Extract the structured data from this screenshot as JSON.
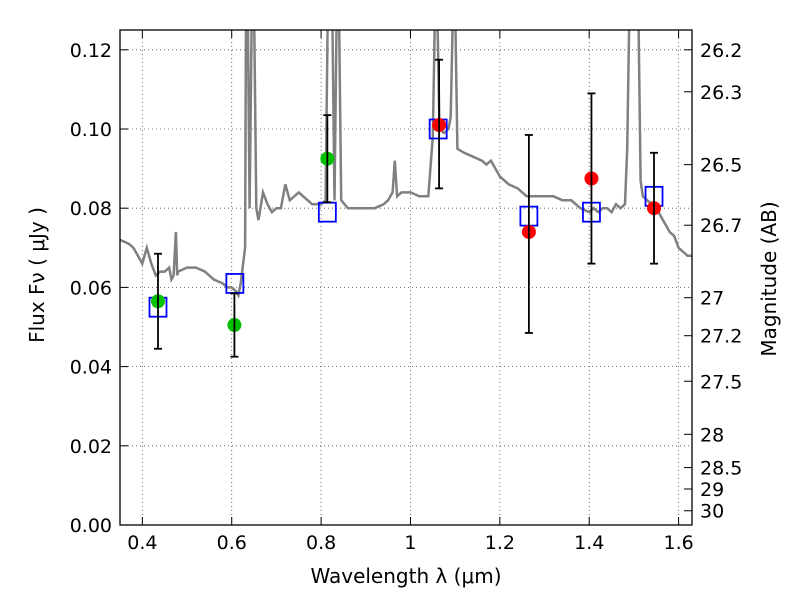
{
  "chart_data": {
    "type": "scatter",
    "xlabel": "Wavelength  λ (μm)",
    "ylabel": "Flux  Fν  ( μJy )",
    "y2label": "Magnitude (AB)",
    "xlim": [
      0.35,
      1.63
    ],
    "ylim": [
      0.0,
      0.125
    ],
    "grid": true,
    "x_ticks": [
      0.4,
      0.6,
      0.8,
      1.0,
      1.2,
      1.4,
      1.6
    ],
    "x_tick_labels": [
      "0.4",
      "0.6",
      "0.8",
      "1",
      "1.2",
      "1.4",
      "1.6"
    ],
    "y_ticks": [
      0.0,
      0.02,
      0.04,
      0.06,
      0.08,
      0.1,
      0.12
    ],
    "y_tick_labels": [
      "0.00",
      "0.02",
      "0.04",
      "0.06",
      "0.08",
      "0.10",
      "0.12"
    ],
    "y2_ticks": [
      {
        "label": "26.2",
        "flux": 0.12
      },
      {
        "label": "26.3",
        "flux": 0.1094
      },
      {
        "label": "26.5",
        "flux": 0.091
      },
      {
        "label": "26.7",
        "flux": 0.0757
      },
      {
        "label": "27",
        "flux": 0.0574
      },
      {
        "label": "27.2",
        "flux": 0.0478
      },
      {
        "label": "27.5",
        "flux": 0.0363
      },
      {
        "label": "28",
        "flux": 0.0229
      },
      {
        "label": "28.5",
        "flux": 0.0145
      },
      {
        "label": "29",
        "flux": 0.0091
      },
      {
        "label": "30",
        "flux": 0.0036
      }
    ],
    "series": [
      {
        "kind": "line",
        "color": "#808080",
        "points": [
          [
            0.35,
            0.072
          ],
          [
            0.37,
            0.071
          ],
          [
            0.38,
            0.07
          ],
          [
            0.39,
            0.068
          ],
          [
            0.4,
            0.066
          ],
          [
            0.41,
            0.07
          ],
          [
            0.42,
            0.066
          ],
          [
            0.43,
            0.063
          ],
          [
            0.44,
            0.064
          ],
          [
            0.45,
            0.064
          ],
          [
            0.46,
            0.065
          ],
          [
            0.465,
            0.062
          ],
          [
            0.47,
            0.063
          ],
          [
            0.475,
            0.074
          ],
          [
            0.478,
            0.063
          ],
          [
            0.48,
            0.064
          ],
          [
            0.5,
            0.065
          ],
          [
            0.52,
            0.065
          ],
          [
            0.54,
            0.064
          ],
          [
            0.56,
            0.062
          ],
          [
            0.58,
            0.061
          ],
          [
            0.59,
            0.06
          ],
          [
            0.6,
            0.06
          ],
          [
            0.61,
            0.059
          ],
          [
            0.615,
            0.058
          ],
          [
            0.62,
            0.061
          ],
          [
            0.63,
            0.07
          ],
          [
            0.632,
            0.13
          ],
          [
            0.636,
            0.13
          ],
          [
            0.64,
            0.08
          ],
          [
            0.645,
            0.13
          ],
          [
            0.65,
            0.13
          ],
          [
            0.655,
            0.08
          ],
          [
            0.66,
            0.077
          ],
          [
            0.67,
            0.084
          ],
          [
            0.68,
            0.081
          ],
          [
            0.69,
            0.079
          ],
          [
            0.7,
            0.08
          ],
          [
            0.71,
            0.08
          ],
          [
            0.72,
            0.086
          ],
          [
            0.73,
            0.082
          ],
          [
            0.74,
            0.083
          ],
          [
            0.75,
            0.084
          ],
          [
            0.76,
            0.083
          ],
          [
            0.77,
            0.082
          ],
          [
            0.78,
            0.081
          ],
          [
            0.79,
            0.081
          ],
          [
            0.8,
            0.081
          ],
          [
            0.81,
            0.082
          ],
          [
            0.815,
            0.13
          ],
          [
            0.825,
            0.13
          ],
          [
            0.83,
            0.082
          ],
          [
            0.835,
            0.13
          ],
          [
            0.84,
            0.13
          ],
          [
            0.845,
            0.082
          ],
          [
            0.86,
            0.08
          ],
          [
            0.88,
            0.08
          ],
          [
            0.9,
            0.08
          ],
          [
            0.92,
            0.08
          ],
          [
            0.94,
            0.081
          ],
          [
            0.95,
            0.082
          ],
          [
            0.96,
            0.084
          ],
          [
            0.965,
            0.092
          ],
          [
            0.97,
            0.083
          ],
          [
            0.98,
            0.084
          ],
          [
            1.0,
            0.084
          ],
          [
            1.02,
            0.083
          ],
          [
            1.04,
            0.083
          ],
          [
            1.05,
            0.098
          ],
          [
            1.055,
            0.13
          ],
          [
            1.06,
            0.13
          ],
          [
            1.065,
            0.1
          ],
          [
            1.075,
            0.099
          ],
          [
            1.085,
            0.1
          ],
          [
            1.09,
            0.103
          ],
          [
            1.095,
            0.13
          ],
          [
            1.1,
            0.13
          ],
          [
            1.105,
            0.095
          ],
          [
            1.12,
            0.094
          ],
          [
            1.14,
            0.093
          ],
          [
            1.16,
            0.092
          ],
          [
            1.17,
            0.091
          ],
          [
            1.18,
            0.092
          ],
          [
            1.19,
            0.09
          ],
          [
            1.2,
            0.088
          ],
          [
            1.22,
            0.086
          ],
          [
            1.24,
            0.085
          ],
          [
            1.26,
            0.083
          ],
          [
            1.28,
            0.083
          ],
          [
            1.3,
            0.083
          ],
          [
            1.32,
            0.083
          ],
          [
            1.34,
            0.082
          ],
          [
            1.36,
            0.082
          ],
          [
            1.38,
            0.08
          ],
          [
            1.4,
            0.079
          ],
          [
            1.41,
            0.08
          ],
          [
            1.42,
            0.079
          ],
          [
            1.43,
            0.08
          ],
          [
            1.44,
            0.08
          ],
          [
            1.45,
            0.079
          ],
          [
            1.46,
            0.081
          ],
          [
            1.47,
            0.08
          ],
          [
            1.48,
            0.081
          ],
          [
            1.485,
            0.095
          ],
          [
            1.49,
            0.13
          ],
          [
            1.51,
            0.13
          ],
          [
            1.515,
            0.087
          ],
          [
            1.52,
            0.083
          ],
          [
            1.53,
            0.082
          ],
          [
            1.54,
            0.081
          ],
          [
            1.55,
            0.08
          ],
          [
            1.56,
            0.078
          ],
          [
            1.57,
            0.076
          ],
          [
            1.58,
            0.074
          ],
          [
            1.59,
            0.073
          ],
          [
            1.6,
            0.07
          ],
          [
            1.62,
            0.068
          ],
          [
            1.63,
            0.068
          ]
        ]
      },
      {
        "kind": "points",
        "marker": "square-open",
        "color": "#0000ff",
        "points": [
          [
            0.435,
            0.055
          ],
          [
            0.607,
            0.061
          ],
          [
            0.814,
            0.079
          ],
          [
            1.062,
            0.1
          ],
          [
            1.265,
            0.078
          ],
          [
            1.405,
            0.079
          ],
          [
            1.545,
            0.083
          ]
        ]
      },
      {
        "kind": "points",
        "marker": "circle",
        "color": "#00c000",
        "points": [
          [
            0.435,
            0.0565
          ],
          [
            0.606,
            0.0505
          ],
          [
            0.814,
            0.0925
          ]
        ]
      },
      {
        "kind": "points",
        "marker": "circle",
        "color": "#ff0000",
        "points": [
          [
            1.064,
            0.101
          ],
          [
            1.265,
            0.074
          ],
          [
            1.405,
            0.0875
          ],
          [
            1.545,
            0.08
          ]
        ]
      },
      {
        "kind": "errorbars",
        "color": "#000000",
        "bars": [
          {
            "x": 0.435,
            "y": 0.0565,
            "lo": 0.0445,
            "hi": 0.0685
          },
          {
            "x": 0.606,
            "y": 0.0505,
            "lo": 0.0425,
            "hi": 0.0585
          },
          {
            "x": 0.814,
            "y": 0.0925,
            "lo": 0.0815,
            "hi": 0.1035
          },
          {
            "x": 1.064,
            "y": 0.101,
            "lo": 0.085,
            "hi": 0.1175
          },
          {
            "x": 1.265,
            "y": 0.074,
            "lo": 0.0485,
            "hi": 0.0985
          },
          {
            "x": 1.405,
            "y": 0.0875,
            "lo": 0.066,
            "hi": 0.109
          },
          {
            "x": 1.545,
            "y": 0.08,
            "lo": 0.066,
            "hi": 0.094
          }
        ]
      }
    ]
  }
}
